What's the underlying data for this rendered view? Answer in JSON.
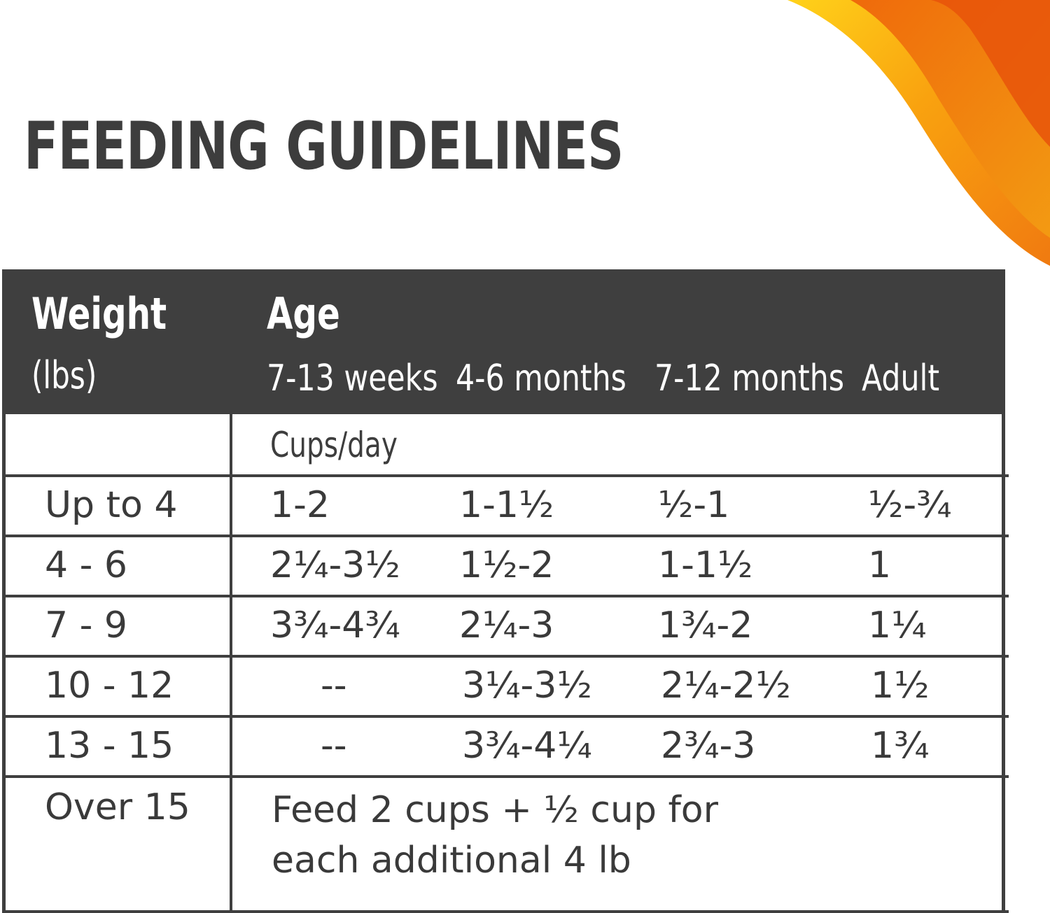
{
  "title": "FEEDING GUIDELINES",
  "accent_colors": [
    "#f7b500",
    "#f28a0c",
    "#e8540a"
  ],
  "header": {
    "weight_label": "Weight",
    "weight_unit": "(lbs)",
    "age_label": "Age",
    "columns": [
      "7-13 weeks",
      "4-6 months",
      "7-12 months",
      "Adult"
    ]
  },
  "unit_row": "Cups/day",
  "rows": [
    {
      "weight": "Up to 4",
      "values": [
        "1-2",
        "1-1½",
        "½-1",
        "½-¾"
      ]
    },
    {
      "weight": "4 - 6",
      "values": [
        "2¼-3½",
        "1½-2",
        "1-1½",
        "1"
      ]
    },
    {
      "weight": "7 - 9",
      "values": [
        "3¾-4¾",
        "2¼-3",
        "1¾-2",
        "1¼"
      ]
    },
    {
      "weight": "10 - 12",
      "values": [
        "--",
        "3¼-3½",
        "2¼-2½",
        "1½"
      ]
    },
    {
      "weight": "13 - 15",
      "values": [
        "--",
        "3¾-4¼",
        "2¾-3",
        "1¾"
      ]
    }
  ],
  "last_row": {
    "weight": "Over 15",
    "note_line1": "Feed 2 cups + ½ cup for",
    "note_line2": "each additional 4 lb"
  }
}
